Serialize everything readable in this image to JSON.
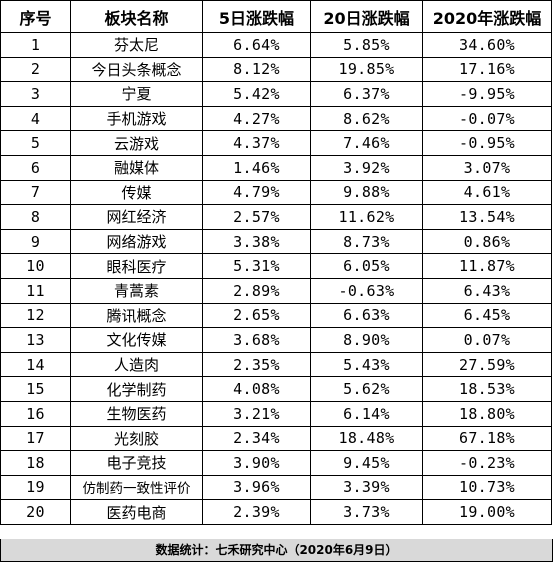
{
  "headers": {
    "seq": "序号",
    "sector": "板块名称",
    "chg5d": "5日涨跌幅",
    "chg20d": "20日涨跌幅",
    "chg2020": "2020年涨跌幅"
  },
  "rows": [
    {
      "seq": "1",
      "sector": "芬太尼",
      "chg5d": "6.64%",
      "chg20d": "5.85%",
      "chg2020": "34.60%"
    },
    {
      "seq": "2",
      "sector": "今日头条概念",
      "chg5d": "8.12%",
      "chg20d": "19.85%",
      "chg2020": "17.16%"
    },
    {
      "seq": "3",
      "sector": "宁夏",
      "chg5d": "5.42%",
      "chg20d": "6.37%",
      "chg2020": "-9.95%"
    },
    {
      "seq": "4",
      "sector": "手机游戏",
      "chg5d": "4.27%",
      "chg20d": "8.62%",
      "chg2020": "-0.07%"
    },
    {
      "seq": "5",
      "sector": "云游戏",
      "chg5d": "4.37%",
      "chg20d": "7.46%",
      "chg2020": "-0.95%"
    },
    {
      "seq": "6",
      "sector": "融媒体",
      "chg5d": "1.46%",
      "chg20d": "3.92%",
      "chg2020": "3.07%"
    },
    {
      "seq": "7",
      "sector": "传媒",
      "chg5d": "4.79%",
      "chg20d": "9.88%",
      "chg2020": "4.61%"
    },
    {
      "seq": "8",
      "sector": "网红经济",
      "chg5d": "2.57%",
      "chg20d": "11.62%",
      "chg2020": "13.54%"
    },
    {
      "seq": "9",
      "sector": "网络游戏",
      "chg5d": "3.38%",
      "chg20d": "8.73%",
      "chg2020": "0.86%"
    },
    {
      "seq": "10",
      "sector": "眼科医疗",
      "chg5d": "5.31%",
      "chg20d": "6.05%",
      "chg2020": "11.87%"
    },
    {
      "seq": "11",
      "sector": "青蒿素",
      "chg5d": "2.89%",
      "chg20d": "-0.63%",
      "chg2020": "6.43%"
    },
    {
      "seq": "12",
      "sector": "腾讯概念",
      "chg5d": "2.65%",
      "chg20d": "6.63%",
      "chg2020": "6.45%"
    },
    {
      "seq": "13",
      "sector": "文化传媒",
      "chg5d": "3.68%",
      "chg20d": "8.90%",
      "chg2020": "0.07%"
    },
    {
      "seq": "14",
      "sector": "人造肉",
      "chg5d": "2.35%",
      "chg20d": "5.43%",
      "chg2020": "27.59%"
    },
    {
      "seq": "15",
      "sector": "化学制药",
      "chg5d": "4.08%",
      "chg20d": "5.62%",
      "chg2020": "18.53%"
    },
    {
      "seq": "16",
      "sector": "生物医药",
      "chg5d": "3.21%",
      "chg20d": "6.14%",
      "chg2020": "18.80%"
    },
    {
      "seq": "17",
      "sector": "光刻胶",
      "chg5d": "2.34%",
      "chg20d": "18.48%",
      "chg2020": "67.18%"
    },
    {
      "seq": "18",
      "sector": "电子竞技",
      "chg5d": "3.90%",
      "chg20d": "9.45%",
      "chg2020": "-0.23%"
    },
    {
      "seq": "19",
      "sector": "仿制药一致性评价",
      "chg5d": "3.96%",
      "chg20d": "3.39%",
      "chg2020": "10.73%"
    },
    {
      "seq": "20",
      "sector": "医药电商",
      "chg5d": "2.39%",
      "chg20d": "3.73%",
      "chg2020": "19.00%"
    }
  ],
  "footer": "数据统计：七禾研究中心（2020年6月9日）"
}
